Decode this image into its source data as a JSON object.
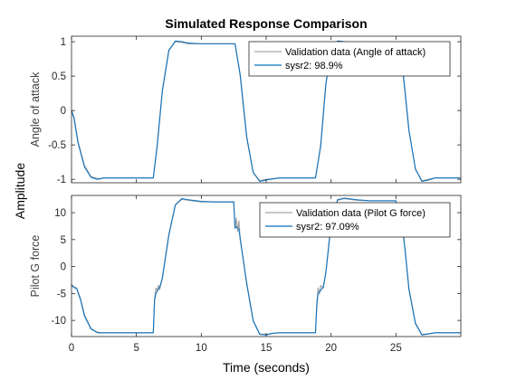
{
  "figure": {
    "title": "Simulated Response Comparison",
    "xlabel": "Time (seconds)",
    "ylabel": "Amplitude"
  },
  "colors": {
    "validation": "#a6a6a6",
    "model": "#0f72bd",
    "axes": "#262626",
    "background": "#ffffff"
  },
  "chart_data": [
    {
      "type": "line",
      "ylabel": "Angle of attack",
      "xlim": [
        0,
        30
      ],
      "ylim": [
        -1.05,
        1.08
      ],
      "xticks": [
        0,
        5,
        10,
        15,
        20,
        25
      ],
      "yticks": [
        -1,
        -0.5,
        0,
        0.5,
        1
      ],
      "ytick_labels": [
        "-1",
        "-0.5",
        "0",
        "0.5",
        "1"
      ],
      "legend_position": "top-right",
      "series": [
        {
          "name": "Validation data (Angle of attack)",
          "x": [
            0,
            0.2,
            0.5,
            1,
            1.5,
            2,
            2.5,
            3,
            4,
            5,
            6,
            6.3,
            6.6,
            7,
            7.5,
            8,
            8.5,
            9,
            10,
            11,
            12,
            12.6,
            13,
            13.5,
            14,
            14.5,
            15,
            16,
            17,
            18,
            18.8,
            19.2,
            19.6,
            20,
            20.5,
            21,
            22,
            23,
            24,
            25,
            25.2,
            25.6,
            26,
            26.5,
            27,
            27.5,
            28,
            29,
            30
          ],
          "y": [
            0,
            -0.1,
            -0.45,
            -0.8,
            -0.96,
            -0.99,
            -0.98,
            -0.98,
            -0.98,
            -0.98,
            -0.98,
            -0.98,
            -0.5,
            0.3,
            0.88,
            1.0,
            0.99,
            0.97,
            0.97,
            0.97,
            0.97,
            0.97,
            0.5,
            -0.4,
            -0.9,
            -1.02,
            -1.0,
            -0.98,
            -0.98,
            -0.98,
            -0.98,
            -0.5,
            0.4,
            0.88,
            1.0,
            0.99,
            0.97,
            0.97,
            0.97,
            0.97,
            0.95,
            0.45,
            -0.3,
            -0.85,
            -1.02,
            -1.0,
            -0.98,
            -0.98,
            -0.98
          ]
        },
        {
          "name": "sysr2: 98.9%",
          "x": [
            0,
            0.2,
            0.5,
            1,
            1.5,
            2,
            2.5,
            3,
            4,
            5,
            6,
            6.3,
            6.6,
            7,
            7.5,
            8,
            8.5,
            9,
            10,
            11,
            12,
            12.6,
            13,
            13.5,
            14,
            14.5,
            15,
            16,
            17,
            18,
            18.8,
            19.2,
            19.6,
            20,
            20.5,
            21,
            22,
            23,
            24,
            25,
            25.2,
            25.6,
            26,
            26.5,
            27,
            27.5,
            28,
            29,
            30
          ],
          "y": [
            0,
            -0.12,
            -0.47,
            -0.82,
            -0.97,
            -1.0,
            -0.98,
            -0.98,
            -0.98,
            -0.98,
            -0.98,
            -0.98,
            -0.52,
            0.28,
            0.87,
            1.01,
            1.0,
            0.98,
            0.97,
            0.97,
            0.97,
            0.97,
            0.52,
            -0.38,
            -0.9,
            -1.03,
            -1.01,
            -0.98,
            -0.98,
            -0.98,
            -0.98,
            -0.52,
            0.38,
            0.87,
            1.01,
            1.0,
            0.98,
            0.97,
            0.97,
            0.97,
            0.95,
            0.47,
            -0.28,
            -0.85,
            -1.03,
            -1.01,
            -0.98,
            -0.98,
            -0.98
          ]
        }
      ]
    },
    {
      "type": "line",
      "ylabel": "Pilot G force",
      "xlim": [
        0,
        30
      ],
      "ylim": [
        -13,
        13.2
      ],
      "xticks": [
        0,
        5,
        10,
        15,
        20,
        25
      ],
      "yticks": [
        -10,
        -5,
        0,
        5,
        10
      ],
      "ytick_labels": [
        "-10",
        "-5",
        "0",
        "5",
        "10"
      ],
      "xtick_labels": [
        "0",
        "5",
        "10",
        "15",
        "20",
        "25"
      ],
      "legend_position": "top-right",
      "series": [
        {
          "name": "Validation data (Pilot G force)",
          "x": [
            0,
            0.2,
            0.4,
            0.7,
            1,
            1.5,
            2,
            2.5,
            3,
            4,
            5,
            6,
            6.3,
            6.4,
            6.5,
            6.6,
            6.7,
            6.8,
            7,
            7.5,
            8,
            8.5,
            9,
            10,
            11,
            12,
            12.5,
            12.6,
            12.7,
            12.8,
            12.9,
            13,
            13.5,
            14,
            14.5,
            15,
            15.5,
            16,
            17,
            18,
            18.8,
            18.9,
            19,
            19.1,
            19.2,
            19.4,
            19.6,
            20,
            20.5,
            21,
            22,
            23,
            24,
            25,
            25.2,
            25.3,
            25.4,
            25.5,
            25.7,
            26,
            26.5,
            27,
            27.5,
            28,
            29,
            30
          ],
          "y": [
            -3.3,
            -3.8,
            -4.0,
            -6,
            -9,
            -11.5,
            -12.2,
            -12.3,
            -12.3,
            -12.3,
            -12.3,
            -12.3,
            -12.3,
            -6,
            -4,
            -4.5,
            -3.5,
            -4.2,
            -2,
            6,
            11.5,
            12.5,
            12.3,
            12,
            12,
            12,
            12,
            7,
            9,
            6.5,
            8.5,
            5,
            -3,
            -10,
            -12.5,
            -12.6,
            -12.4,
            -12.3,
            -12.3,
            -12.3,
            -12.3,
            -7,
            -4,
            -5,
            -3.5,
            -4,
            -1,
            8,
            12.3,
            12.6,
            12.3,
            12.2,
            12.2,
            12.2,
            7.5,
            9,
            6.5,
            8,
            3,
            -4,
            -10.5,
            -12.6,
            -12.5,
            -12.3,
            -12.3,
            -12.3
          ]
        },
        {
          "name": "sysr2: 97.09%",
          "x": [
            0,
            0.2,
            0.4,
            0.7,
            1,
            1.5,
            2,
            2.5,
            3,
            4,
            5,
            6,
            6.3,
            6.4,
            6.5,
            6.6,
            6.7,
            6.8,
            7,
            7.5,
            8,
            8.5,
            9,
            10,
            11,
            12,
            12.5,
            12.6,
            12.7,
            12.8,
            12.9,
            13,
            13.5,
            14,
            14.5,
            15,
            15.5,
            16,
            17,
            18,
            18.8,
            18.9,
            19,
            19.1,
            19.2,
            19.4,
            19.6,
            20,
            20.5,
            21,
            22,
            23,
            24,
            25,
            25.2,
            25.3,
            25.4,
            25.5,
            25.7,
            26,
            26.5,
            27,
            27.5,
            28,
            29,
            30
          ],
          "y": [
            -3.5,
            -3.9,
            -4.1,
            -6.2,
            -9.2,
            -11.6,
            -12.3,
            -12.3,
            -12.3,
            -12.3,
            -12.3,
            -12.3,
            -12.3,
            -6.2,
            -5,
            -4.6,
            -4.2,
            -3.8,
            -2.2,
            5.8,
            11.4,
            12.6,
            12.4,
            12.1,
            12,
            12,
            12,
            7.2,
            7.4,
            7.1,
            6.9,
            5.2,
            -3.2,
            -10.1,
            -12.6,
            -12.7,
            -12.4,
            -12.3,
            -12.3,
            -12.3,
            -12.3,
            -7.2,
            -5,
            -4.8,
            -4.4,
            -3.8,
            -1.2,
            7.8,
            12.4,
            12.7,
            12.4,
            12.2,
            12.2,
            12.2,
            7.7,
            7.5,
            7.3,
            7,
            3.2,
            -4.2,
            -10.6,
            -12.7,
            -12.5,
            -12.3,
            -12.3,
            -12.3
          ]
        }
      ]
    }
  ]
}
